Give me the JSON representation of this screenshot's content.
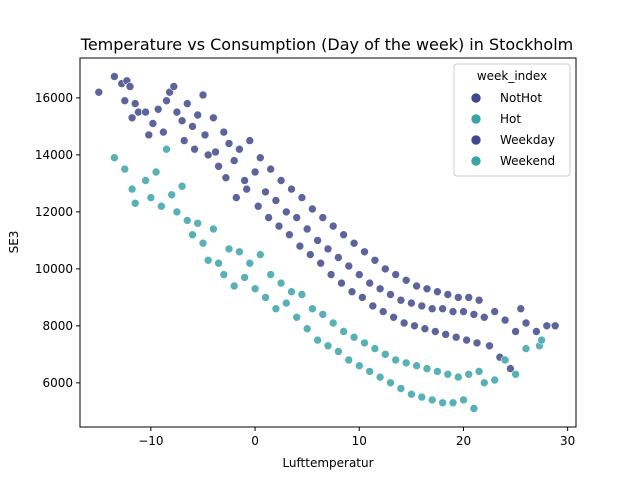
{
  "chart_data": {
    "type": "scatter",
    "title": "Temperature vs Consumption (Day of the week) in Stockholm",
    "xlabel": "Lufttemperatur",
    "ylabel": "SE3",
    "xlim": [
      -16.8,
      30.8
    ],
    "ylim": [
      4450,
      17400
    ],
    "xticks": [
      -10,
      0,
      10,
      20,
      30
    ],
    "yticks": [
      6000,
      8000,
      10000,
      12000,
      14000,
      16000
    ],
    "grid": false,
    "legend": {
      "title": "week_index",
      "placement": "top-right",
      "entries": [
        {
          "label": "NotHot",
          "color": "#41498a"
        },
        {
          "label": "Hot",
          "color": "#3aa3a8"
        },
        {
          "label": "Weekday",
          "color": "#41498a"
        },
        {
          "label": "Weekend",
          "color": "#3aa3a8"
        }
      ]
    },
    "series": [
      {
        "name": "Weekday",
        "color": "#41498a",
        "points": [
          [
            -15,
            16200
          ],
          [
            -13.5,
            16750
          ],
          [
            -12.8,
            16500
          ],
          [
            -12.3,
            16600
          ],
          [
            -12.5,
            15900
          ],
          [
            -12,
            16400
          ],
          [
            -11.5,
            15800
          ],
          [
            -11.8,
            15300
          ],
          [
            -11.2,
            15500
          ],
          [
            -10.5,
            15500
          ],
          [
            -10.2,
            14700
          ],
          [
            -9.8,
            15100
          ],
          [
            -9.3,
            15600
          ],
          [
            -8.8,
            14800
          ],
          [
            -8.5,
            15900
          ],
          [
            -8.2,
            16200
          ],
          [
            -7.8,
            16400
          ],
          [
            -7.5,
            15500
          ],
          [
            -7,
            15200
          ],
          [
            -6.8,
            14500
          ],
          [
            -6.5,
            15800
          ],
          [
            -6,
            15000
          ],
          [
            -5.8,
            14200
          ],
          [
            -5.5,
            15400
          ],
          [
            -5,
            16100
          ],
          [
            -4.8,
            14700
          ],
          [
            -4.5,
            14000
          ],
          [
            -4,
            15300
          ],
          [
            -3.8,
            14100
          ],
          [
            -3.5,
            13600
          ],
          [
            -3,
            14800
          ],
          [
            -2.8,
            13200
          ],
          [
            -2.5,
            14400
          ],
          [
            -2,
            13800
          ],
          [
            -1.8,
            12500
          ],
          [
            -1.5,
            14200
          ],
          [
            -1,
            13100
          ],
          [
            -0.8,
            12800
          ],
          [
            -0.5,
            14500
          ],
          [
            0,
            13400
          ],
          [
            0.3,
            12200
          ],
          [
            0.5,
            13900
          ],
          [
            1,
            12700
          ],
          [
            1.3,
            11800
          ],
          [
            1.5,
            13500
          ],
          [
            2,
            12400
          ],
          [
            2.3,
            11500
          ],
          [
            2.5,
            13100
          ],
          [
            3,
            12000
          ],
          [
            3.3,
            11200
          ],
          [
            3.5,
            12800
          ],
          [
            4,
            11800
          ],
          [
            4.3,
            10800
          ],
          [
            4.5,
            12500
          ],
          [
            5,
            11400
          ],
          [
            5.3,
            10500
          ],
          [
            5.5,
            12100
          ],
          [
            6,
            11000
          ],
          [
            6.3,
            10200
          ],
          [
            6.5,
            11800
          ],
          [
            7,
            10700
          ],
          [
            7.3,
            9800
          ],
          [
            7.5,
            11500
          ],
          [
            8,
            10400
          ],
          [
            8.3,
            9500
          ],
          [
            8.5,
            11200
          ],
          [
            9,
            10100
          ],
          [
            9.3,
            9200
          ],
          [
            9.5,
            10900
          ],
          [
            10,
            9800
          ],
          [
            10.3,
            9000
          ],
          [
            10.5,
            10600
          ],
          [
            11,
            9500
          ],
          [
            11.3,
            8700
          ],
          [
            11.5,
            10300
          ],
          [
            12,
            9300
          ],
          [
            12.3,
            8500
          ],
          [
            12.5,
            10000
          ],
          [
            13,
            9100
          ],
          [
            13.3,
            8300
          ],
          [
            13.5,
            9800
          ],
          [
            14,
            8900
          ],
          [
            14.3,
            8100
          ],
          [
            14.5,
            9600
          ],
          [
            15,
            8800
          ],
          [
            15.3,
            8000
          ],
          [
            15.5,
            9400
          ],
          [
            16,
            8700
          ],
          [
            16.3,
            7900
          ],
          [
            16.5,
            9300
          ],
          [
            17,
            8600
          ],
          [
            17.3,
            7800
          ],
          [
            17.5,
            9200
          ],
          [
            18,
            8600
          ],
          [
            18.3,
            7700
          ],
          [
            18.5,
            9100
          ],
          [
            19,
            8500
          ],
          [
            19.3,
            7600
          ],
          [
            19.5,
            9000
          ],
          [
            20,
            8500
          ],
          [
            20.3,
            7500
          ],
          [
            20.5,
            9000
          ],
          [
            21,
            8400
          ],
          [
            21.3,
            7400
          ],
          [
            21.5,
            8900
          ],
          [
            22,
            8300
          ],
          [
            22.5,
            7300
          ],
          [
            23,
            8500
          ],
          [
            23.5,
            6900
          ],
          [
            24,
            8200
          ],
          [
            24.5,
            6500
          ],
          [
            25,
            7800
          ],
          [
            25.5,
            8600
          ],
          [
            26,
            8100
          ],
          [
            27,
            7800
          ],
          [
            28,
            8000
          ],
          [
            28.8,
            8000
          ]
        ]
      },
      {
        "name": "Weekend",
        "color": "#3aa3a8",
        "points": [
          [
            -13.5,
            13900
          ],
          [
            -12.5,
            13500
          ],
          [
            -11.8,
            12800
          ],
          [
            -11.5,
            12300
          ],
          [
            -10.5,
            13100
          ],
          [
            -10,
            12500
          ],
          [
            -9.5,
            13400
          ],
          [
            -9,
            12200
          ],
          [
            -8.5,
            14200
          ],
          [
            -8,
            12600
          ],
          [
            -7.5,
            12000
          ],
          [
            -7,
            12900
          ],
          [
            -6.5,
            11700
          ],
          [
            -6,
            11200
          ],
          [
            -5.5,
            11600
          ],
          [
            -5,
            10900
          ],
          [
            -4.5,
            10300
          ],
          [
            -4,
            11400
          ],
          [
            -3.5,
            10200
          ],
          [
            -3,
            9800
          ],
          [
            -2.5,
            10700
          ],
          [
            -2,
            9400
          ],
          [
            -1.5,
            10600
          ],
          [
            -1,
            9700
          ],
          [
            -0.5,
            10200
          ],
          [
            0,
            9300
          ],
          [
            0.5,
            10500
          ],
          [
            1,
            9000
          ],
          [
            1.5,
            9800
          ],
          [
            2,
            8600
          ],
          [
            2.5,
            9500
          ],
          [
            3,
            8800
          ],
          [
            3.5,
            9200
          ],
          [
            4,
            8300
          ],
          [
            4.5,
            9100
          ],
          [
            5,
            7900
          ],
          [
            5.5,
            8600
          ],
          [
            6,
            7500
          ],
          [
            6.5,
            8400
          ],
          [
            7,
            7300
          ],
          [
            7.5,
            8100
          ],
          [
            8,
            7100
          ],
          [
            8.5,
            7800
          ],
          [
            9,
            6800
          ],
          [
            9.5,
            7600
          ],
          [
            10,
            6600
          ],
          [
            10.5,
            7400
          ],
          [
            11,
            6400
          ],
          [
            11.5,
            7200
          ],
          [
            12,
            6200
          ],
          [
            12.5,
            7000
          ],
          [
            13,
            6000
          ],
          [
            13.5,
            6800
          ],
          [
            14,
            5800
          ],
          [
            14.5,
            6700
          ],
          [
            15,
            5600
          ],
          [
            15.5,
            6600
          ],
          [
            16,
            5500
          ],
          [
            16.5,
            6500
          ],
          [
            17,
            5400
          ],
          [
            17.5,
            6400
          ],
          [
            18,
            5300
          ],
          [
            18.5,
            6300
          ],
          [
            19,
            5300
          ],
          [
            19.5,
            6200
          ],
          [
            20,
            5400
          ],
          [
            20.5,
            6300
          ],
          [
            21,
            5100
          ],
          [
            21.5,
            6400
          ],
          [
            22,
            6000
          ],
          [
            23,
            6100
          ],
          [
            24,
            6800
          ],
          [
            25,
            6300
          ],
          [
            26,
            7200
          ],
          [
            27.3,
            7300
          ],
          [
            27.5,
            7500
          ]
        ]
      }
    ]
  }
}
